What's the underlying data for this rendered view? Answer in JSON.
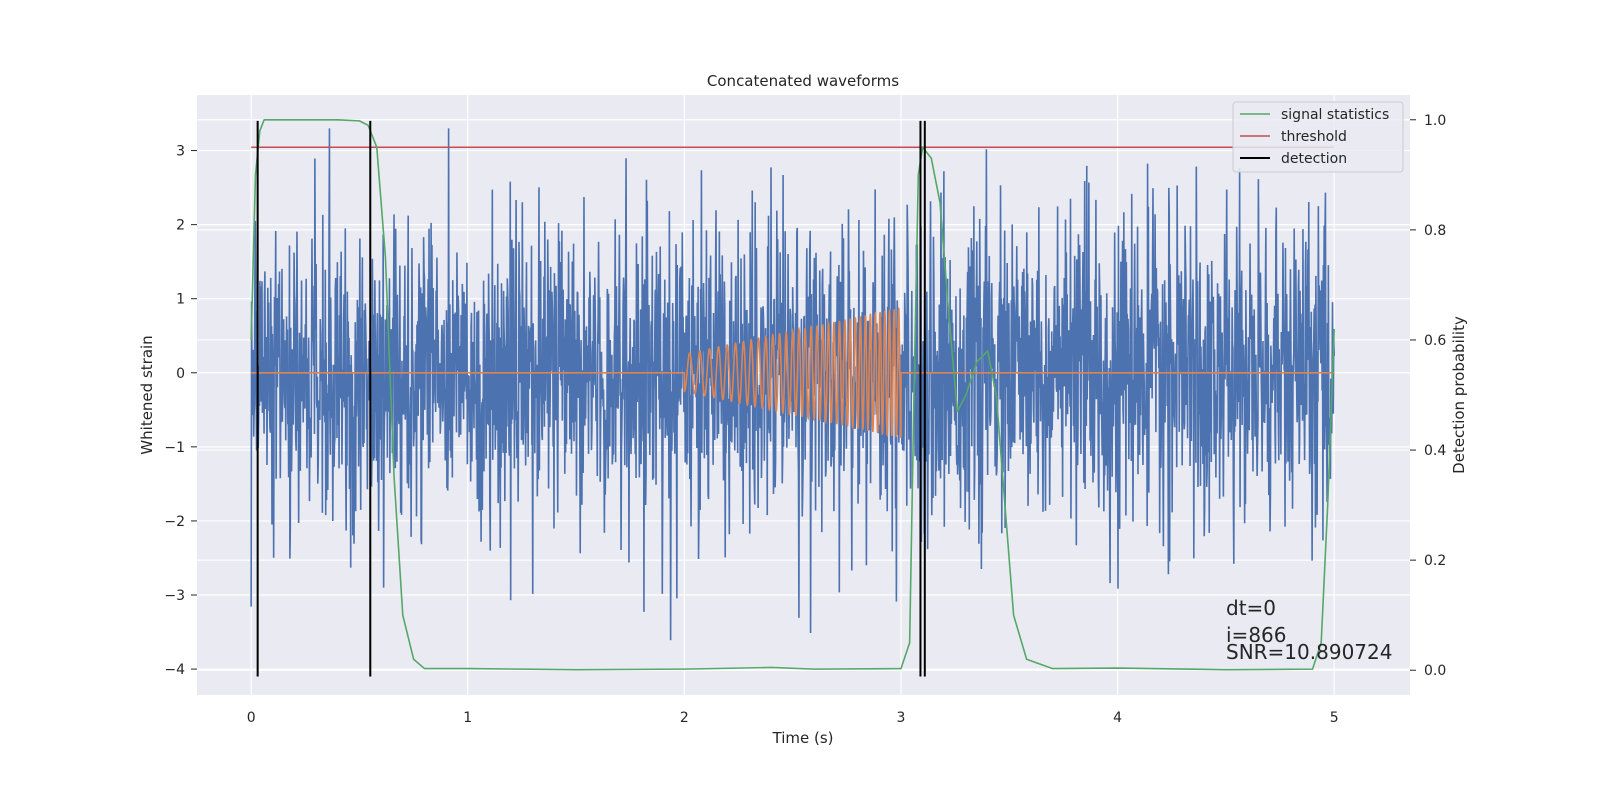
{
  "chart_data": {
    "type": "line",
    "title": "Concatenated waveforms",
    "xlabel": "Time (s)",
    "ylabel": "Whitened strain",
    "y2label": "Detection probability",
    "xlim": [
      -0.25,
      5.35
    ],
    "ylim": [
      -4.35,
      3.75
    ],
    "y2lim": [
      -0.045,
      1.045
    ],
    "xticks": [
      "0",
      "1",
      "2",
      "3",
      "4",
      "5"
    ],
    "yticks": [
      "3",
      "2",
      "1",
      "0",
      "−1",
      "−2",
      "−3",
      "−4"
    ],
    "y2ticks": [
      "1.0",
      "0.8",
      "0.6",
      "0.4",
      "0.2",
      "0.0"
    ],
    "grid": true,
    "legend_position": "top-right",
    "colors": {
      "strain": "#4c72b0",
      "injection": "#dd8452",
      "signal_statistics": "#55a868",
      "threshold": "#c44e52",
      "detection": "#000000",
      "background": "#eaeaf2",
      "grid": "#ffffff"
    },
    "strain": {
      "x_range": [
        0,
        5
      ],
      "typical_amplitude": 1.0,
      "peak_amplitude": 3.3
    },
    "injection": {
      "x_range": [
        2,
        3
      ],
      "frequency_range_hz": [
        20,
        48
      ],
      "amplitude_range": [
        0.25,
        0.88
      ]
    },
    "series": [
      {
        "name": "signal statistics",
        "axis": "right",
        "x": [
          0.0,
          0.02,
          0.04,
          0.06,
          0.1,
          0.2,
          0.4,
          0.5,
          0.54,
          0.58,
          0.62,
          0.66,
          0.7,
          0.75,
          0.8,
          1.0,
          1.5,
          2.0,
          2.4,
          2.6,
          3.0,
          3.04,
          3.06,
          3.08,
          3.1,
          3.14,
          3.18,
          3.22,
          3.26,
          3.3,
          3.35,
          3.4,
          3.44,
          3.48,
          3.52,
          3.58,
          3.7,
          4.0,
          4.5,
          4.9,
          4.94,
          4.97,
          5.0
        ],
        "y": [
          0.6,
          0.9,
          0.98,
          1.0,
          1.0,
          1.0,
          1.0,
          0.998,
          0.99,
          0.95,
          0.75,
          0.35,
          0.1,
          0.02,
          0.003,
          0.003,
          0.001,
          0.002,
          0.005,
          0.002,
          0.003,
          0.05,
          0.5,
          0.9,
          0.95,
          0.93,
          0.85,
          0.65,
          0.47,
          0.5,
          0.56,
          0.58,
          0.5,
          0.3,
          0.1,
          0.02,
          0.003,
          0.004,
          0.001,
          0.002,
          0.05,
          0.3,
          0.62
        ]
      },
      {
        "name": "threshold",
        "axis": "right",
        "x": [
          0,
          5
        ],
        "y": [
          0.95,
          0.95
        ]
      },
      {
        "name": "detection",
        "type": "vlines",
        "x": [
          0.03,
          0.55,
          3.09,
          3.11
        ],
        "y_range": [
          -4.1,
          3.4
        ]
      }
    ],
    "annotations": [
      "dt=0",
      "i=866",
      "SNR=10.890724"
    ]
  }
}
